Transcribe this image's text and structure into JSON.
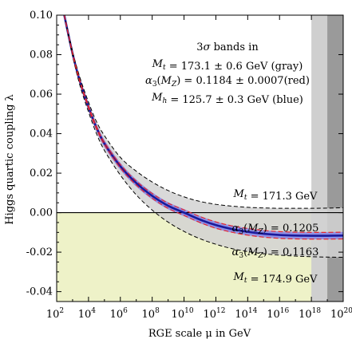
{
  "chart_data": {
    "type": "line",
    "xlabel": "RGE scale μ in GeV",
    "ylabel": "Higgs quartic coupling λ",
    "x_scale": "log",
    "xlim": [
      100,
      1e+20
    ],
    "ylim": [
      -0.045,
      0.1
    ],
    "x_ticks": [
      {
        "value": 100,
        "label": "10",
        "exp": "2"
      },
      {
        "value": 10000.0,
        "label": "10",
        "exp": "4"
      },
      {
        "value": 1000000.0,
        "label": "10",
        "exp": "6"
      },
      {
        "value": 100000000.0,
        "label": "10",
        "exp": "8"
      },
      {
        "value": 10000000000.0,
        "label": "10",
        "exp": "10"
      },
      {
        "value": 1000000000000.0,
        "label": "10",
        "exp": "12"
      },
      {
        "value": 100000000000000.0,
        "label": "10",
        "exp": "14"
      },
      {
        "value": 1e+16,
        "label": "10",
        "exp": "16"
      },
      {
        "value": 1e+18,
        "label": "10",
        "exp": "18"
      },
      {
        "value": 1e+20,
        "label": "10",
        "exp": "20"
      }
    ],
    "y_ticks": [
      {
        "value": -0.04,
        "label": "-0.04"
      },
      {
        "value": -0.02,
        "label": "-0.02"
      },
      {
        "value": 0.0,
        "label": "0.00"
      },
      {
        "value": 0.02,
        "label": "0.02"
      },
      {
        "value": 0.04,
        "label": "0.04"
      },
      {
        "value": 0.06,
        "label": "0.06"
      },
      {
        "value": 0.08,
        "label": "0.08"
      },
      {
        "value": 0.1,
        "label": "0.10"
      }
    ],
    "legend_lines": [
      "3σ bands in",
      "Mt = 173.1 ± 0.6 GeV (gray)",
      "α3(MZ) = 0.1184 ± 0.0007(red)",
      "Mh = 125.7 ± 0.3 GeV (blue)"
    ],
    "legend_placement": "top-right",
    "labels": {
      "mt_low": "Mt = 171.3 GeV",
      "alpha_high": "α3(MZ) = 0.1205",
      "alpha_low": "α3(MZ) = 0.1163",
      "mt_high": "Mt = 174.9 GeV"
    },
    "regions": {
      "instability_fill_color": "#eef2c8",
      "planck_band_light": [
        1e+18,
        1e+19
      ],
      "planck_band_dark": [
        1e+19,
        1e+20
      ]
    },
    "x": [
      300,
      1000,
      3000,
      10000,
      30000,
      100000,
      1000000,
      10000000,
      100000000,
      1000000000,
      10000000000,
      100000000000,
      1000000000000,
      10000000000000,
      100000000000000,
      1000000000000000,
      10000000000000000,
      100000000000000000,
      1000000000000000000,
      10000000000000000000,
      100000000000000000000
    ],
    "series": [
      {
        "role": "central",
        "color": "#1a1a9c",
        "values": [
          0.1,
          0.0805,
          0.066,
          0.0535,
          0.0435,
          0.035,
          0.0235,
          0.015,
          0.0085,
          0.0035,
          0.0,
          -0.0035,
          -0.0063,
          -0.0083,
          -0.0097,
          -0.0107,
          -0.0113,
          -0.0116,
          -0.0117,
          -0.0117,
          -0.0116
        ]
      },
      {
        "role": "mt_low",
        "color": "#000000",
        "values": [
          0.1,
          0.0815,
          0.068,
          0.056,
          0.0465,
          0.039,
          0.028,
          0.021,
          0.0155,
          0.0112,
          0.008,
          0.0057,
          0.0042,
          0.0033,
          0.0027,
          0.0024,
          0.0022,
          0.0022,
          0.0022,
          0.0023,
          0.0025
        ]
      },
      {
        "role": "mt_high",
        "color": "#000000",
        "values": [
          0.1,
          0.0795,
          0.064,
          0.051,
          0.0405,
          0.0315,
          0.019,
          0.009,
          0.0013,
          -0.0048,
          -0.0095,
          -0.0132,
          -0.016,
          -0.0182,
          -0.0197,
          -0.0208,
          -0.0215,
          -0.022,
          -0.0223,
          -0.0225,
          -0.0226
        ]
      },
      {
        "role": "alpha_high",
        "color": "#e6262e",
        "values": [
          0.1,
          0.0808,
          0.0664,
          0.054,
          0.0441,
          0.0357,
          0.0244,
          0.016,
          0.0097,
          0.0048,
          0.0014,
          -0.002,
          -0.0047,
          -0.0067,
          -0.008,
          -0.009,
          -0.0096,
          -0.0099,
          -0.01,
          -0.01,
          -0.0099
        ]
      },
      {
        "role": "alpha_low",
        "color": "#e6262e",
        "values": [
          0.1,
          0.0802,
          0.0656,
          0.053,
          0.0429,
          0.0343,
          0.0226,
          0.014,
          0.0073,
          0.0022,
          -0.0014,
          -0.005,
          -0.0079,
          -0.0099,
          -0.0114,
          -0.0124,
          -0.013,
          -0.0133,
          -0.0134,
          -0.0134,
          -0.0133
        ]
      }
    ]
  }
}
